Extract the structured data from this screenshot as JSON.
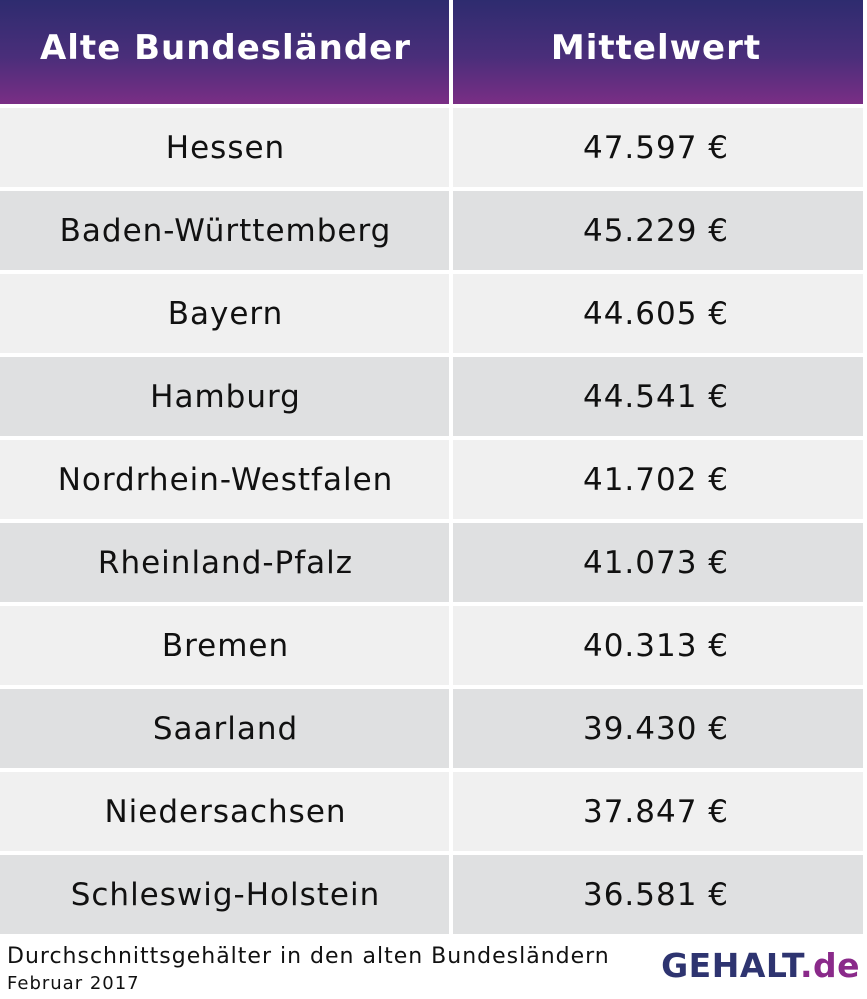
{
  "chart_data": {
    "type": "table",
    "columns": [
      "Alte Bundesländer",
      "Mittelwert"
    ],
    "rows": [
      {
        "state": "Hessen",
        "value_label": "47.597 €",
        "value": 47597
      },
      {
        "state": "Baden-Württemberg",
        "value_label": "45.229 €",
        "value": 45229
      },
      {
        "state": "Bayern",
        "value_label": "44.605 €",
        "value": 44605
      },
      {
        "state": "Hamburg",
        "value_label": "44.541 €",
        "value": 44541
      },
      {
        "state": "Nordrhein-Westfalen",
        "value_label": "41.702 €",
        "value": 41702
      },
      {
        "state": "Rheinland-Pfalz",
        "value_label": "41.073 €",
        "value": 41073
      },
      {
        "state": "Bremen",
        "value_label": "40.313 €",
        "value": 40313
      },
      {
        "state": "Saarland",
        "value_label": "39.430 €",
        "value": 39430
      },
      {
        "state": "Niedersachsen",
        "value_label": "37.847 €",
        "value": 37847
      },
      {
        "state": "Schleswig-Holstein",
        "value_label": "36.581 €",
        "value": 36581
      }
    ]
  },
  "footer": {
    "caption": "Durchschnittsgehälter in den alten Bundesländern",
    "date": "Februar 2017",
    "logo_text": "GEHALT",
    "logo_suffix": ".de"
  },
  "colors": {
    "header_gradient_top": "#2e2c6f",
    "header_gradient_bottom": "#7a2e85",
    "row_light": "#f0f0f0",
    "row_dark": "#dfe0e1",
    "logo_main": "#2e3470",
    "logo_dot": "#8a2a8a"
  }
}
